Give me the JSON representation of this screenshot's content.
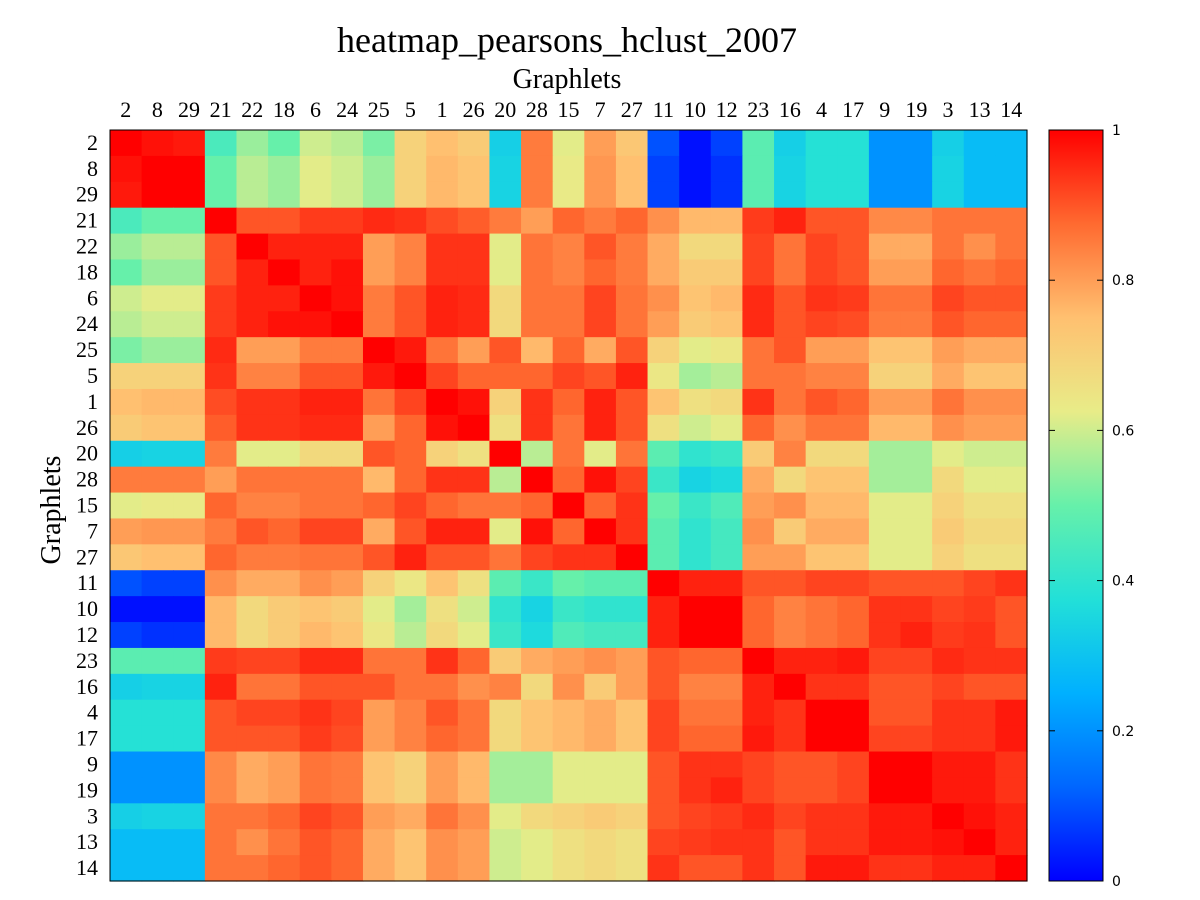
{
  "chart_data": {
    "type": "heatmap",
    "title": "heatmap_pearsons_hclust_2007",
    "xlabel": "Graphlets",
    "ylabel": "Graphlets",
    "labels": [
      "2",
      "8",
      "29",
      "21",
      "22",
      "18",
      "6",
      "24",
      "25",
      "5",
      "1",
      "26",
      "20",
      "28",
      "15",
      "7",
      "27",
      "11",
      "10",
      "12",
      "23",
      "16",
      "4",
      "17",
      "9",
      "19",
      "3",
      "13",
      "14"
    ],
    "colorbar": {
      "min": 0,
      "max": 1,
      "ticks": [
        "0",
        "0.2",
        "0.4",
        "0.6",
        "0.8",
        "1"
      ],
      "colormap": "jet"
    },
    "matrix": [
      [
        1.0,
        0.98,
        0.97,
        0.45,
        0.55,
        0.5,
        0.6,
        0.58,
        0.52,
        0.7,
        0.75,
        0.72,
        0.33,
        0.85,
        0.62,
        0.8,
        0.73,
        0.1,
        0.02,
        0.08,
        0.48,
        0.33,
        0.38,
        0.38,
        0.2,
        0.2,
        0.33,
        0.28,
        0.28
      ],
      [
        0.98,
        1.0,
        1.0,
        0.5,
        0.58,
        0.55,
        0.62,
        0.6,
        0.55,
        0.7,
        0.76,
        0.74,
        0.34,
        0.85,
        0.63,
        0.81,
        0.75,
        0.08,
        0.02,
        0.06,
        0.48,
        0.34,
        0.38,
        0.38,
        0.2,
        0.2,
        0.34,
        0.28,
        0.28
      ],
      [
        0.97,
        1.0,
        1.0,
        0.5,
        0.58,
        0.55,
        0.62,
        0.6,
        0.55,
        0.7,
        0.76,
        0.74,
        0.34,
        0.85,
        0.63,
        0.81,
        0.75,
        0.08,
        0.02,
        0.06,
        0.48,
        0.34,
        0.38,
        0.38,
        0.2,
        0.2,
        0.34,
        0.28,
        0.28
      ],
      [
        0.45,
        0.5,
        0.5,
        1.0,
        0.9,
        0.9,
        0.93,
        0.93,
        0.95,
        0.94,
        0.91,
        0.89,
        0.85,
        0.8,
        0.88,
        0.85,
        0.88,
        0.82,
        0.76,
        0.76,
        0.93,
        0.96,
        0.9,
        0.9,
        0.83,
        0.83,
        0.86,
        0.86,
        0.86
      ],
      [
        0.55,
        0.58,
        0.58,
        0.9,
        1.0,
        0.96,
        0.96,
        0.96,
        0.8,
        0.84,
        0.94,
        0.94,
        0.62,
        0.86,
        0.84,
        0.9,
        0.85,
        0.78,
        0.68,
        0.68,
        0.92,
        0.86,
        0.92,
        0.9,
        0.78,
        0.78,
        0.86,
        0.82,
        0.86
      ],
      [
        0.5,
        0.55,
        0.55,
        0.9,
        0.96,
        1.0,
        0.96,
        0.98,
        0.8,
        0.84,
        0.94,
        0.94,
        0.62,
        0.86,
        0.84,
        0.88,
        0.85,
        0.78,
        0.72,
        0.72,
        0.92,
        0.86,
        0.92,
        0.9,
        0.8,
        0.8,
        0.88,
        0.86,
        0.88
      ],
      [
        0.6,
        0.62,
        0.62,
        0.93,
        0.96,
        0.96,
        1.0,
        0.98,
        0.85,
        0.9,
        0.96,
        0.95,
        0.68,
        0.86,
        0.86,
        0.92,
        0.86,
        0.82,
        0.74,
        0.76,
        0.95,
        0.9,
        0.94,
        0.93,
        0.86,
        0.86,
        0.92,
        0.9,
        0.9
      ],
      [
        0.58,
        0.6,
        0.6,
        0.93,
        0.96,
        0.98,
        0.98,
        1.0,
        0.85,
        0.9,
        0.96,
        0.95,
        0.68,
        0.86,
        0.86,
        0.92,
        0.86,
        0.8,
        0.72,
        0.74,
        0.95,
        0.9,
        0.92,
        0.91,
        0.85,
        0.85,
        0.9,
        0.88,
        0.88
      ],
      [
        0.52,
        0.55,
        0.55,
        0.95,
        0.8,
        0.8,
        0.85,
        0.85,
        1.0,
        0.97,
        0.86,
        0.8,
        0.9,
        0.76,
        0.88,
        0.78,
        0.9,
        0.7,
        0.62,
        0.64,
        0.86,
        0.9,
        0.8,
        0.8,
        0.74,
        0.74,
        0.8,
        0.78,
        0.78
      ],
      [
        0.7,
        0.7,
        0.7,
        0.94,
        0.84,
        0.84,
        0.9,
        0.9,
        0.97,
        1.0,
        0.92,
        0.88,
        0.88,
        0.88,
        0.92,
        0.9,
        0.96,
        0.64,
        0.56,
        0.58,
        0.86,
        0.86,
        0.84,
        0.84,
        0.7,
        0.7,
        0.78,
        0.74,
        0.74
      ],
      [
        0.75,
        0.76,
        0.76,
        0.91,
        0.94,
        0.94,
        0.96,
        0.96,
        0.86,
        0.92,
        1.0,
        0.98,
        0.7,
        0.94,
        0.88,
        0.96,
        0.9,
        0.74,
        0.66,
        0.68,
        0.94,
        0.86,
        0.9,
        0.88,
        0.8,
        0.8,
        0.86,
        0.82,
        0.82
      ],
      [
        0.72,
        0.74,
        0.74,
        0.89,
        0.94,
        0.94,
        0.95,
        0.95,
        0.8,
        0.88,
        0.98,
        1.0,
        0.66,
        0.94,
        0.86,
        0.96,
        0.9,
        0.66,
        0.6,
        0.62,
        0.88,
        0.82,
        0.86,
        0.86,
        0.76,
        0.76,
        0.82,
        0.8,
        0.8
      ],
      [
        0.33,
        0.34,
        0.34,
        0.85,
        0.62,
        0.62,
        0.68,
        0.68,
        0.9,
        0.88,
        0.7,
        0.66,
        1.0,
        0.58,
        0.86,
        0.62,
        0.86,
        0.48,
        0.4,
        0.42,
        0.72,
        0.84,
        0.68,
        0.68,
        0.56,
        0.56,
        0.62,
        0.6,
        0.6
      ],
      [
        0.85,
        0.85,
        0.85,
        0.8,
        0.86,
        0.86,
        0.86,
        0.86,
        0.76,
        0.88,
        0.94,
        0.94,
        0.58,
        1.0,
        0.88,
        0.98,
        0.92,
        0.42,
        0.34,
        0.36,
        0.78,
        0.68,
        0.74,
        0.74,
        0.56,
        0.56,
        0.68,
        0.62,
        0.62
      ],
      [
        0.62,
        0.63,
        0.63,
        0.88,
        0.84,
        0.84,
        0.86,
        0.86,
        0.88,
        0.92,
        0.88,
        0.86,
        0.86,
        0.88,
        1.0,
        0.88,
        0.94,
        0.5,
        0.42,
        0.46,
        0.8,
        0.82,
        0.76,
        0.76,
        0.62,
        0.62,
        0.7,
        0.66,
        0.66
      ],
      [
        0.8,
        0.81,
        0.81,
        0.85,
        0.9,
        0.88,
        0.92,
        0.92,
        0.78,
        0.9,
        0.96,
        0.96,
        0.62,
        0.98,
        0.88,
        1.0,
        0.94,
        0.48,
        0.4,
        0.44,
        0.82,
        0.72,
        0.78,
        0.78,
        0.62,
        0.62,
        0.72,
        0.68,
        0.68
      ],
      [
        0.73,
        0.75,
        0.75,
        0.88,
        0.85,
        0.85,
        0.86,
        0.86,
        0.9,
        0.96,
        0.9,
        0.9,
        0.86,
        0.92,
        0.94,
        0.94,
        1.0,
        0.48,
        0.4,
        0.44,
        0.8,
        0.8,
        0.74,
        0.74,
        0.62,
        0.62,
        0.7,
        0.66,
        0.66
      ],
      [
        0.1,
        0.08,
        0.08,
        0.82,
        0.78,
        0.78,
        0.82,
        0.8,
        0.7,
        0.64,
        0.74,
        0.66,
        0.48,
        0.42,
        0.5,
        0.48,
        0.48,
        1.0,
        0.96,
        0.96,
        0.9,
        0.9,
        0.92,
        0.92,
        0.9,
        0.9,
        0.9,
        0.92,
        0.94
      ],
      [
        0.02,
        0.02,
        0.02,
        0.76,
        0.68,
        0.72,
        0.74,
        0.72,
        0.62,
        0.56,
        0.66,
        0.6,
        0.4,
        0.34,
        0.42,
        0.4,
        0.4,
        0.96,
        1.0,
        1.0,
        0.88,
        0.84,
        0.86,
        0.88,
        0.94,
        0.94,
        0.92,
        0.93,
        0.9
      ],
      [
        0.08,
        0.06,
        0.06,
        0.76,
        0.68,
        0.72,
        0.76,
        0.74,
        0.64,
        0.58,
        0.68,
        0.62,
        0.42,
        0.36,
        0.46,
        0.44,
        0.44,
        0.96,
        1.0,
        1.0,
        0.88,
        0.84,
        0.86,
        0.88,
        0.94,
        0.96,
        0.93,
        0.94,
        0.9
      ],
      [
        0.48,
        0.48,
        0.48,
        0.93,
        0.92,
        0.92,
        0.95,
        0.95,
        0.86,
        0.86,
        0.94,
        0.88,
        0.72,
        0.78,
        0.8,
        0.82,
        0.8,
        0.9,
        0.88,
        0.88,
        1.0,
        0.96,
        0.96,
        0.97,
        0.92,
        0.92,
        0.95,
        0.94,
        0.94
      ],
      [
        0.33,
        0.34,
        0.34,
        0.96,
        0.86,
        0.86,
        0.9,
        0.9,
        0.9,
        0.86,
        0.86,
        0.82,
        0.84,
        0.68,
        0.82,
        0.72,
        0.8,
        0.9,
        0.84,
        0.84,
        0.96,
        1.0,
        0.94,
        0.94,
        0.9,
        0.9,
        0.92,
        0.9,
        0.9
      ],
      [
        0.38,
        0.38,
        0.38,
        0.9,
        0.92,
        0.92,
        0.94,
        0.92,
        0.8,
        0.84,
        0.9,
        0.86,
        0.68,
        0.74,
        0.76,
        0.78,
        0.74,
        0.92,
        0.86,
        0.86,
        0.96,
        0.94,
        1.0,
        1.0,
        0.9,
        0.9,
        0.94,
        0.94,
        0.97
      ],
      [
        0.38,
        0.38,
        0.38,
        0.9,
        0.9,
        0.9,
        0.93,
        0.91,
        0.8,
        0.84,
        0.88,
        0.86,
        0.68,
        0.74,
        0.76,
        0.78,
        0.74,
        0.92,
        0.88,
        0.88,
        0.97,
        0.94,
        1.0,
        1.0,
        0.92,
        0.92,
        0.94,
        0.94,
        0.97
      ],
      [
        0.2,
        0.2,
        0.2,
        0.83,
        0.78,
        0.8,
        0.86,
        0.85,
        0.74,
        0.7,
        0.8,
        0.76,
        0.56,
        0.56,
        0.62,
        0.62,
        0.62,
        0.9,
        0.94,
        0.94,
        0.92,
        0.9,
        0.9,
        0.92,
        1.0,
        1.0,
        0.97,
        0.97,
        0.94
      ],
      [
        0.2,
        0.2,
        0.2,
        0.83,
        0.78,
        0.8,
        0.86,
        0.85,
        0.74,
        0.7,
        0.8,
        0.76,
        0.56,
        0.56,
        0.62,
        0.62,
        0.62,
        0.9,
        0.94,
        0.96,
        0.92,
        0.9,
        0.9,
        0.92,
        1.0,
        1.0,
        0.97,
        0.97,
        0.94
      ],
      [
        0.33,
        0.34,
        0.34,
        0.86,
        0.86,
        0.88,
        0.92,
        0.9,
        0.8,
        0.78,
        0.86,
        0.82,
        0.62,
        0.68,
        0.7,
        0.72,
        0.7,
        0.9,
        0.92,
        0.93,
        0.95,
        0.92,
        0.94,
        0.94,
        0.97,
        0.97,
        1.0,
        0.98,
        0.96
      ],
      [
        0.28,
        0.28,
        0.28,
        0.86,
        0.82,
        0.86,
        0.9,
        0.88,
        0.78,
        0.74,
        0.82,
        0.8,
        0.6,
        0.62,
        0.66,
        0.68,
        0.66,
        0.92,
        0.93,
        0.94,
        0.94,
        0.9,
        0.94,
        0.94,
        0.97,
        0.97,
        0.98,
        1.0,
        0.96
      ],
      [
        0.28,
        0.28,
        0.28,
        0.86,
        0.86,
        0.88,
        0.9,
        0.88,
        0.78,
        0.74,
        0.82,
        0.8,
        0.6,
        0.62,
        0.66,
        0.68,
        0.66,
        0.94,
        0.9,
        0.9,
        0.94,
        0.9,
        0.97,
        0.97,
        0.94,
        0.94,
        0.96,
        0.96,
        1.0
      ]
    ]
  }
}
